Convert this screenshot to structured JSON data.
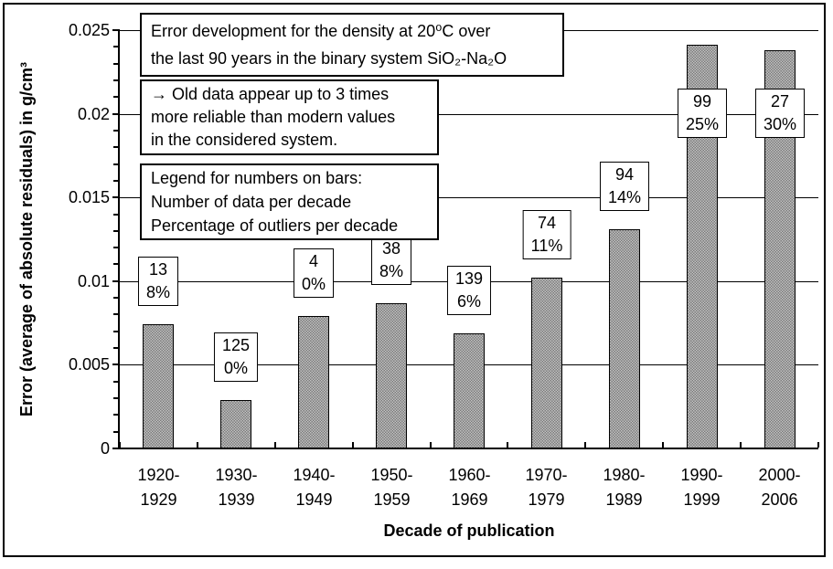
{
  "chart_data": {
    "type": "bar",
    "title_lines": [
      "Error development for the density at 20⁰C over",
      "the last 90 years in the binary system SiO₂-Na₂O"
    ],
    "note_lines": [
      "→ Old data appear up to 3 times",
      "more reliable than modern values",
      "in the considered system."
    ],
    "bar_legend_lines": [
      "Legend for numbers on bars:",
      "Number of data per decade",
      "Percentage of outliers per decade"
    ],
    "categories": [
      "1920-1929",
      "1930-1939",
      "1940-1949",
      "1950-1959",
      "1960-1969",
      "1970-1979",
      "1980-1989",
      "1990-1999",
      "2000-2006"
    ],
    "values": [
      0.0074,
      0.0029,
      0.0079,
      0.0087,
      0.0069,
      0.0102,
      0.0131,
      0.0241,
      0.0238
    ],
    "counts": [
      13,
      125,
      4,
      38,
      139,
      74,
      94,
      99,
      27
    ],
    "outlier_percentages": [
      "8%",
      "0%",
      "0%",
      "8%",
      "6%",
      "11%",
      "14%",
      "25%",
      "30%"
    ],
    "xlabel": "Decade of publication",
    "ylabel": "Error (average of absolute residuals) in g/cm³",
    "ylim": [
      0,
      0.025
    ],
    "y_major_tick_step": 0.005,
    "y_minor_tick_step": 0.001,
    "y_tick_labels": [
      "0",
      "0.005",
      "0.01",
      "0.015",
      "0.02",
      "0.025"
    ],
    "grid": true,
    "legend_position": "none",
    "bar_fill": {
      "light": "#c2c2c2",
      "dark": "#7b7b7b"
    },
    "bar_border": "#000000",
    "axis_color": "#000000",
    "background": "#ffffff"
  }
}
